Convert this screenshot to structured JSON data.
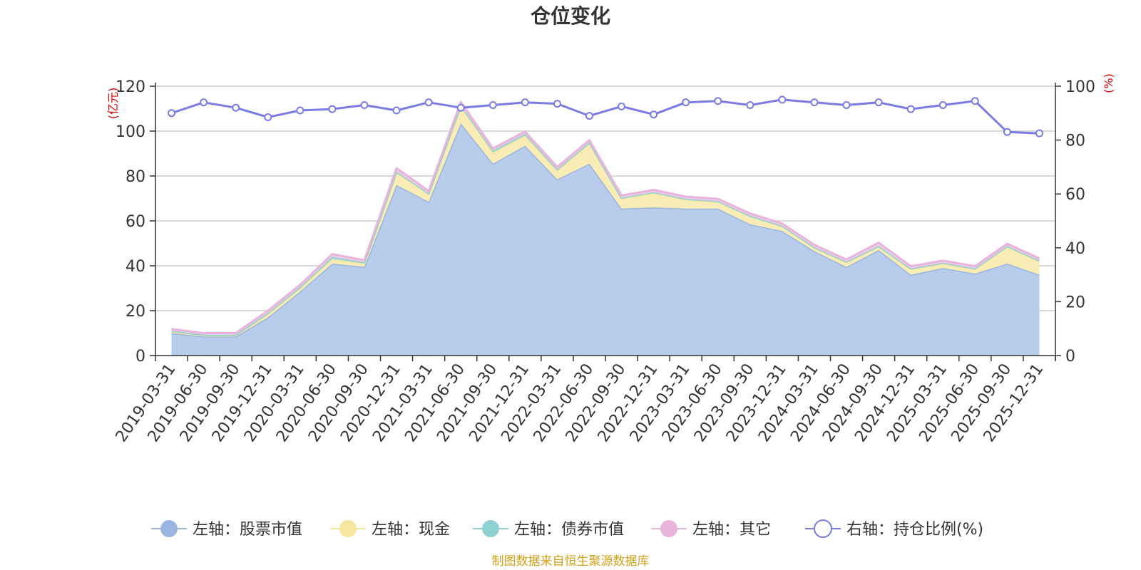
{
  "chart_data": {
    "type": "area",
    "title": "仓位变化",
    "y_left_unit": "(亿元)",
    "y_right_unit": "(%)",
    "ylim_left": [
      0,
      120
    ],
    "ylim_right": [
      0,
      100
    ],
    "y_left_ticks": [
      "0",
      "20",
      "40",
      "60",
      "80",
      "100",
      "120"
    ],
    "y_right_ticks": [
      "0",
      "20",
      "40",
      "60",
      "80",
      "100"
    ],
    "grid": true,
    "legend_position": "bottom",
    "categories": [
      "2019-03-31",
      "2019-06-30",
      "2019-09-30",
      "2019-12-31",
      "2020-03-31",
      "2020-06-30",
      "2020-09-30",
      "2020-12-31",
      "2021-03-31",
      "2021-06-30",
      "2021-09-30",
      "2021-12-31",
      "2022-03-31",
      "2022-06-30",
      "2022-09-30",
      "2022-12-31",
      "2023-03-31",
      "2023-06-30",
      "2023-09-30",
      "2023-12-31",
      "2024-03-31",
      "2024-06-30",
      "2024-09-30",
      "2024-12-31",
      "2025-03-31",
      "2025-06-30",
      "2025-09-30",
      "2025-12-31"
    ],
    "series": [
      {
        "name": "左轴：股票市值",
        "axis": "left",
        "type": "area",
        "color": "#9ab5e0",
        "fill": "#b8cceb",
        "values": [
          10,
          8.5,
          8.5,
          17,
          28.5,
          41,
          39.5,
          76,
          68.5,
          103.5,
          85.5,
          93.5,
          78.5,
          85.5,
          65.5,
          66,
          65.5,
          65.5,
          58.5,
          55.5,
          46.5,
          39.5,
          47,
          36,
          39,
          36.5,
          41,
          36
        ]
      },
      {
        "name": "左轴：现金",
        "axis": "left",
        "type": "area",
        "color": "#f5e6a0",
        "fill": "#faecb5",
        "values": [
          0.5,
          0.5,
          0.5,
          1.5,
          1.5,
          2,
          1.5,
          5.5,
          3.5,
          7.5,
          5,
          4.5,
          4,
          9,
          4.5,
          6.5,
          4,
          3,
          3.5,
          2,
          1.5,
          2,
          1.5,
          2.5,
          2,
          2,
          7.5,
          6
        ]
      },
      {
        "name": "左轴：债券市值",
        "axis": "left",
        "type": "area",
        "color": "#8fd0d0",
        "fill": "#a9dcdc",
        "values": [
          0.5,
          0.3,
          0.3,
          0.5,
          0.5,
          1,
          0.5,
          0.5,
          0.3,
          0.5,
          0.8,
          0.8,
          0.5,
          0.5,
          0.3,
          0.3,
          0.3,
          0.3,
          0.3,
          0.3,
          0.3,
          0.3,
          0.3,
          0.3,
          0.3,
          0.3,
          0.3,
          0.3
        ]
      },
      {
        "name": "左轴：其它",
        "axis": "left",
        "type": "area",
        "color": "#e8b4dc",
        "fill": "#f0cde9",
        "values": [
          0.8,
          0.7,
          0.7,
          1,
          1,
          1.2,
          1,
          1.5,
          1,
          1.5,
          1,
          1,
          1,
          1,
          1,
          1,
          1,
          1,
          1,
          1,
          1,
          1,
          1.5,
          1,
          1,
          1,
          1,
          1
        ]
      },
      {
        "name": "右轴：持仓比例(%)",
        "axis": "right",
        "type": "line",
        "color": "#7b7be6",
        "values": [
          90,
          94,
          92,
          88.5,
          91,
          91.5,
          93,
          91,
          94,
          92,
          93,
          94,
          93.5,
          89,
          92.5,
          89.5,
          94,
          94.5,
          93,
          95,
          94,
          93,
          94,
          91.5,
          93,
          94.5,
          83,
          82.5
        ]
      }
    ]
  },
  "footer": {
    "source": "制图数据来自恒生聚源数据库"
  }
}
